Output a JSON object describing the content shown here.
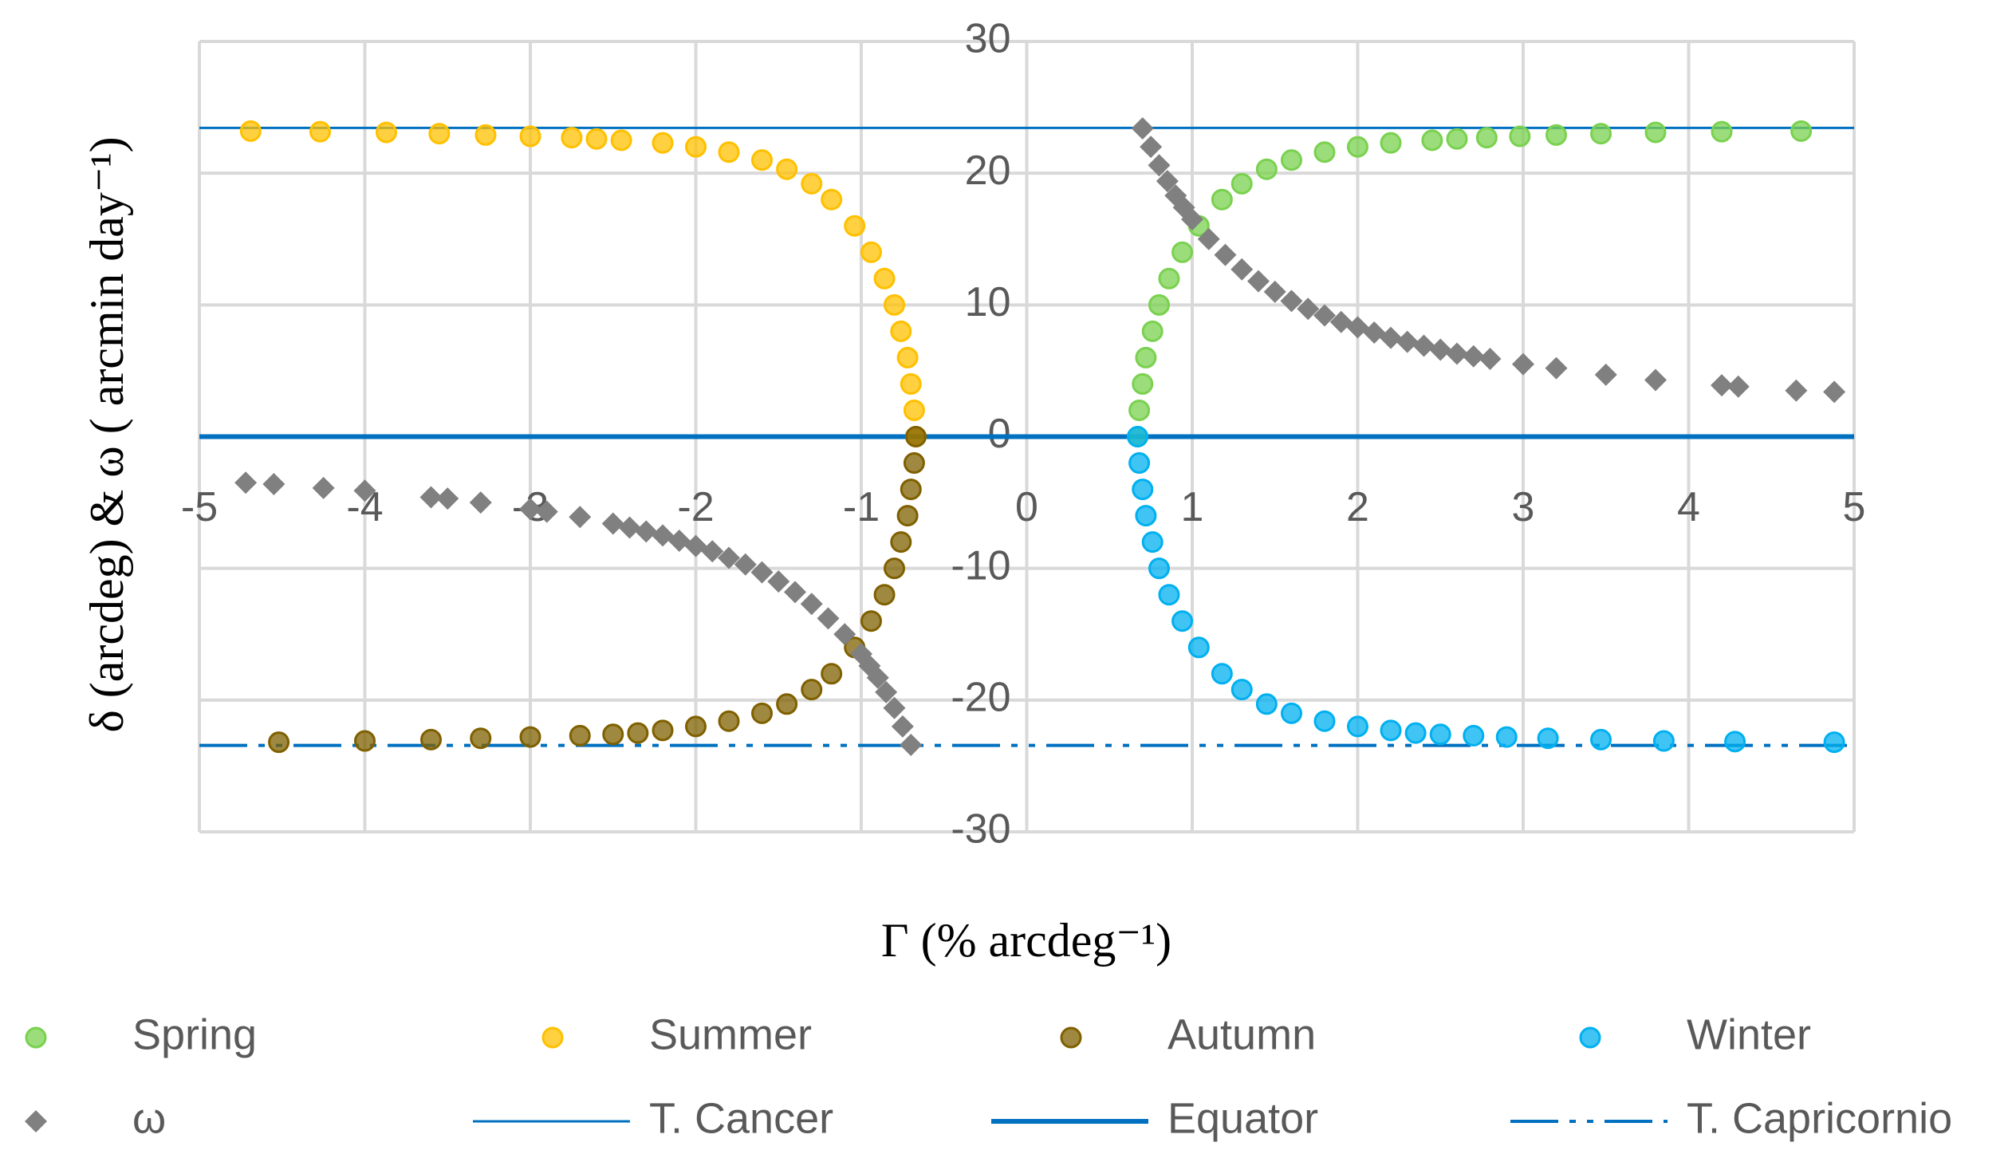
{
  "chart_data": {
    "type": "scatter",
    "xlabel": "Γ (% arcdeg⁻¹)",
    "ylabel": "δ (arcdeg)  &  ω ( arcmin day⁻¹)",
    "xlim": [
      -5,
      5
    ],
    "ylim": [
      -30,
      30
    ],
    "xticks": [
      -5,
      -4,
      -3,
      -2,
      -1,
      0,
      1,
      2,
      3,
      4,
      5
    ],
    "yticks": [
      -30,
      -20,
      -10,
      0,
      10,
      20,
      30
    ],
    "grid": true,
    "legend": "bottom",
    "series": [
      {
        "name": "Spring",
        "color": "#7ad14f",
        "marker": "circle",
        "x": [
          0.67,
          0.68,
          0.7,
          0.72,
          0.76,
          0.8,
          0.86,
          0.94,
          1.04,
          1.18,
          1.3,
          1.45,
          1.6,
          1.8,
          2.0,
          2.2,
          2.45,
          2.6,
          2.78,
          2.98,
          3.2,
          3.47,
          3.8,
          4.2,
          4.68
        ],
        "values": [
          0,
          2,
          4,
          6,
          8,
          10,
          12,
          14,
          16,
          18,
          19.2,
          20.3,
          21,
          21.6,
          22,
          22.3,
          22.5,
          22.6,
          22.7,
          22.8,
          22.9,
          23,
          23.1,
          23.15,
          23.2
        ]
      },
      {
        "name": "Summer",
        "color": "#ffc000",
        "marker": "circle",
        "x": [
          -0.67,
          -0.68,
          -0.7,
          -0.72,
          -0.76,
          -0.8,
          -0.86,
          -0.94,
          -1.04,
          -1.18,
          -1.3,
          -1.45,
          -1.6,
          -1.8,
          -2.0,
          -2.2,
          -2.45,
          -2.6,
          -2.75,
          -3.0,
          -3.27,
          -3.55,
          -3.87,
          -4.27,
          -4.69
        ],
        "values": [
          0,
          2,
          4,
          6,
          8,
          10,
          12,
          14,
          16,
          18,
          19.2,
          20.3,
          21,
          21.6,
          22,
          22.3,
          22.5,
          22.6,
          22.7,
          22.8,
          22.9,
          23,
          23.1,
          23.15,
          23.2
        ]
      },
      {
        "name": "Autumn",
        "color": "#7f6000",
        "marker": "circle",
        "x": [
          -0.67,
          -0.68,
          -0.7,
          -0.72,
          -0.76,
          -0.8,
          -0.86,
          -0.94,
          -1.04,
          -1.18,
          -1.3,
          -1.45,
          -1.6,
          -1.8,
          -2.0,
          -2.2,
          -2.35,
          -2.5,
          -2.7,
          -3.0,
          -3.3,
          -3.6,
          -4.0,
          -4.52
        ],
        "values": [
          0,
          -2,
          -4,
          -6,
          -8,
          -10,
          -12,
          -14,
          -16,
          -18,
          -19.2,
          -20.3,
          -21,
          -21.6,
          -22,
          -22.3,
          -22.5,
          -22.6,
          -22.7,
          -22.8,
          -22.9,
          -23,
          -23.1,
          -23.2
        ]
      },
      {
        "name": "Winter",
        "color": "#00b0f0",
        "marker": "circle",
        "x": [
          0.67,
          0.68,
          0.7,
          0.72,
          0.76,
          0.8,
          0.86,
          0.94,
          1.04,
          1.18,
          1.3,
          1.45,
          1.6,
          1.8,
          2.0,
          2.2,
          2.35,
          2.5,
          2.7,
          2.9,
          3.15,
          3.47,
          3.85,
          4.28,
          4.88
        ],
        "values": [
          0,
          -2,
          -4,
          -6,
          -8,
          -10,
          -12,
          -14,
          -16,
          -18,
          -19.2,
          -20.3,
          -21,
          -21.6,
          -22,
          -22.3,
          -22.5,
          -22.6,
          -22.7,
          -22.8,
          -22.9,
          -23,
          -23.1,
          -23.15,
          -23.2
        ]
      },
      {
        "name": "ω",
        "color": "#808080",
        "marker": "diamond",
        "x": [
          0.7,
          0.75,
          0.8,
          0.85,
          0.9,
          0.95,
          1,
          1.1,
          1.2,
          1.3,
          1.4,
          1.5,
          1.6,
          1.7,
          1.8,
          1.9,
          2,
          2.1,
          2.2,
          2.3,
          2.4,
          2.5,
          2.6,
          2.7,
          2.8,
          3,
          3.2,
          3.5,
          3.8,
          4.2,
          4.3,
          4.65,
          4.88,
          -0.7,
          -0.75,
          -0.8,
          -0.85,
          -0.9,
          -0.95,
          -1,
          -1.1,
          -1.2,
          -1.3,
          -1.4,
          -1.5,
          -1.6,
          -1.7,
          -1.8,
          -1.9,
          -2,
          -2.1,
          -2.2,
          -2.3,
          -2.4,
          -2.5,
          -2.7,
          -2.9,
          -3.0,
          -3.3,
          -3.5,
          -3.6,
          -4.0,
          -4.25,
          -4.55,
          -4.72
        ],
        "values": [
          23.4,
          22,
          20.6,
          19.4,
          18.3,
          17.4,
          16.5,
          15,
          13.8,
          12.7,
          11.8,
          11,
          10.3,
          9.7,
          9.2,
          8.7,
          8.3,
          7.9,
          7.5,
          7.2,
          6.9,
          6.6,
          6.3,
          6.1,
          5.9,
          5.5,
          5.2,
          4.7,
          4.3,
          3.9,
          3.8,
          3.5,
          3.4,
          -23.4,
          -22,
          -20.6,
          -19.4,
          -18.3,
          -17.4,
          -16.5,
          -15,
          -13.8,
          -12.7,
          -11.8,
          -11,
          -10.3,
          -9.7,
          -9.2,
          -8.7,
          -8.3,
          -7.9,
          -7.5,
          -7.2,
          -6.9,
          -6.6,
          -6.1,
          -5.7,
          -5.5,
          -5,
          -4.7,
          -4.6,
          -4.1,
          -3.9,
          -3.6,
          -3.5
        ]
      },
      {
        "name": "T. Cancer",
        "color": "#0070c0",
        "line": "solid",
        "width": 3,
        "x": [
          -5,
          5
        ],
        "values": [
          23.44,
          23.44
        ]
      },
      {
        "name": "Equator",
        "color": "#0070c0",
        "line": "solid",
        "width": 6,
        "x": [
          -5,
          5
        ],
        "values": [
          0,
          0
        ]
      },
      {
        "name": "T. Capricornio",
        "color": "#0070c0",
        "line": "dash-dot-dot",
        "width": 4,
        "x": [
          -5,
          5
        ],
        "values": [
          -23.44,
          -23.44
        ]
      }
    ]
  }
}
